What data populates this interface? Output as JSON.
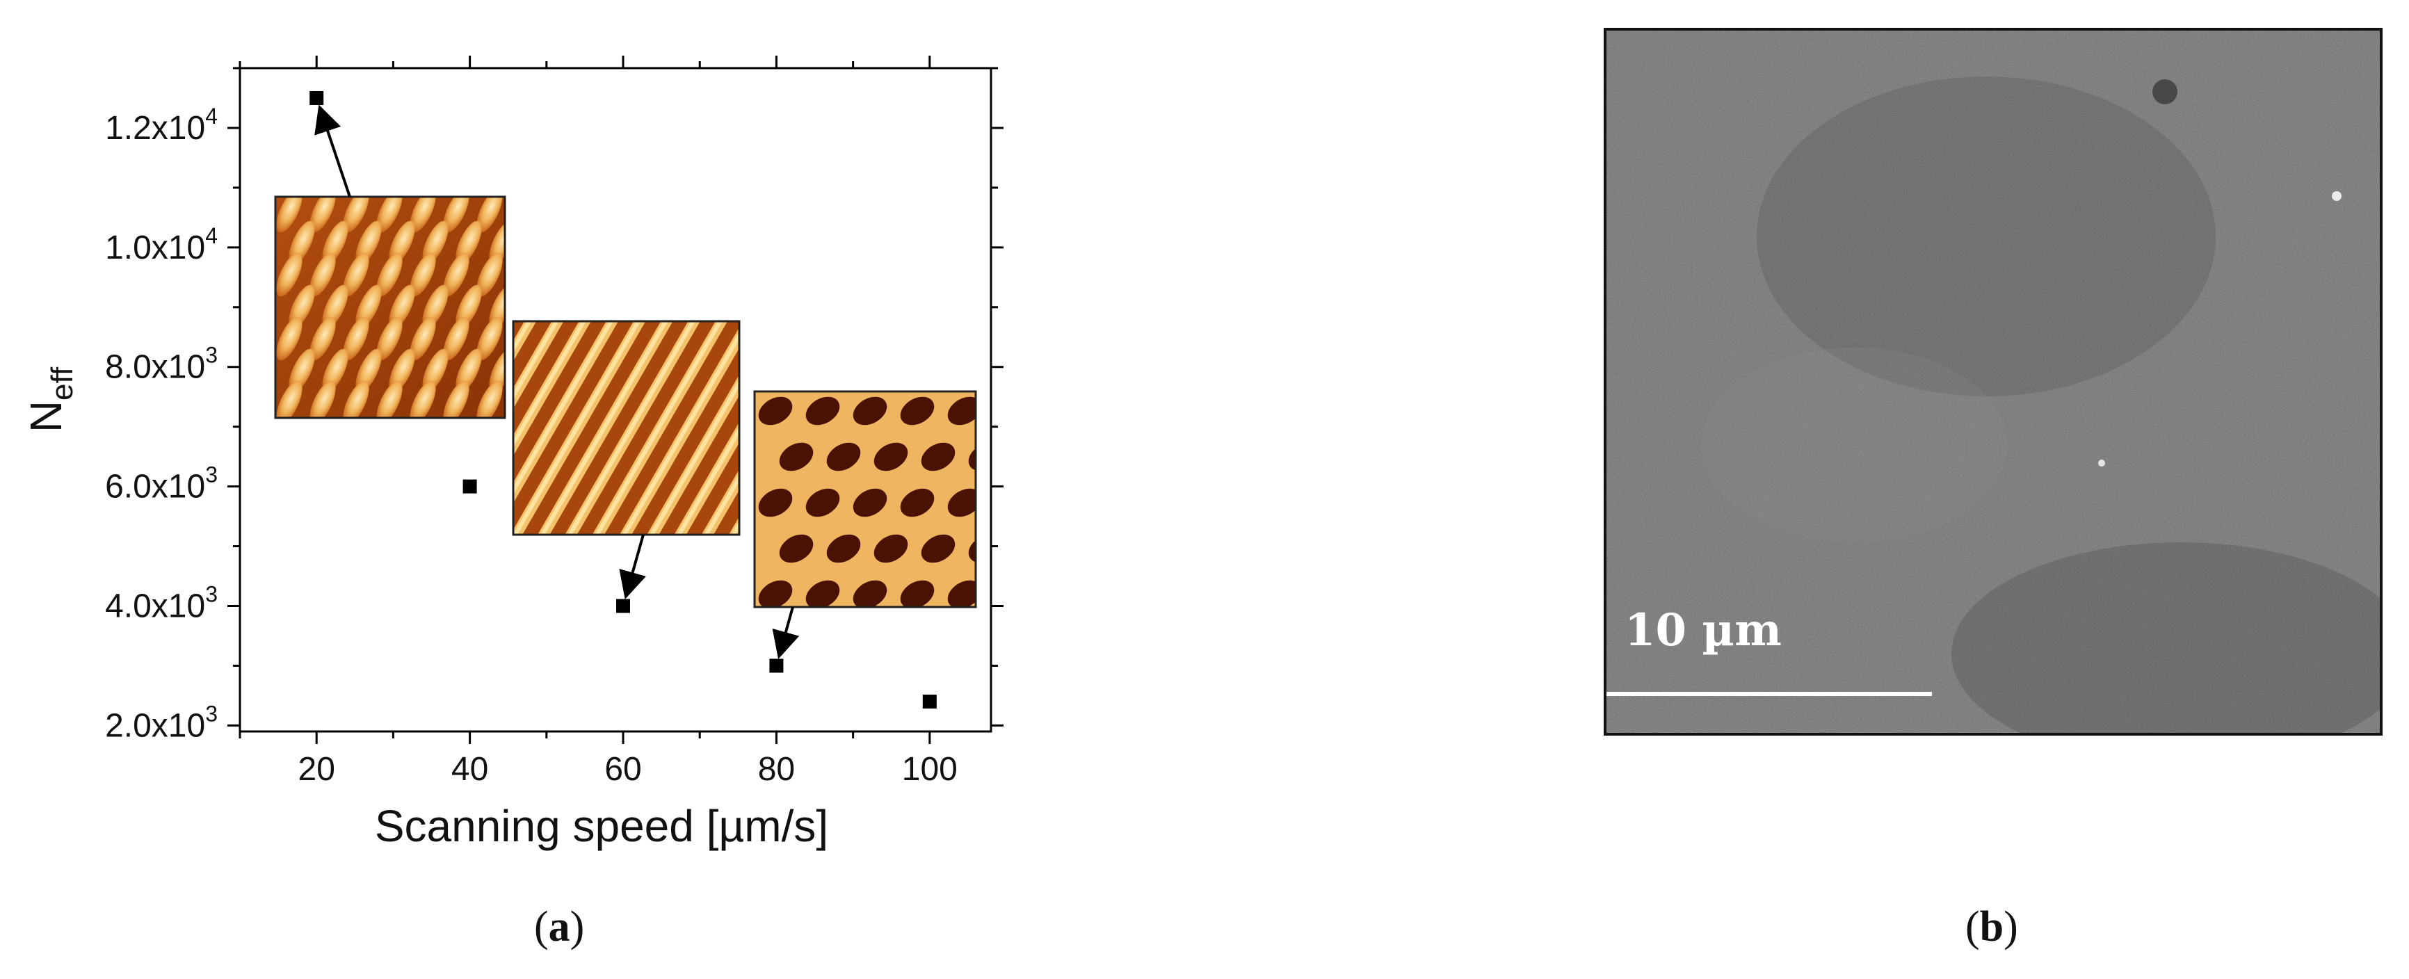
{
  "chart_data": {
    "type": "scatter",
    "xlabel": "Scanning speed [µm/s]",
    "ylabel_main": "N",
    "ylabel_sub": "eff",
    "xlim": [
      10,
      108
    ],
    "ylim": [
      1900,
      13000
    ],
    "x_ticks": [
      20,
      40,
      60,
      80,
      100
    ],
    "x_tick_labels": [
      "20",
      "40",
      "60",
      "80",
      "100"
    ],
    "y_ticks": [
      2000,
      4000,
      6000,
      8000,
      10000,
      12000
    ],
    "y_tick_mantissa": [
      "2.0x10",
      "4.0x10",
      "6.0x10",
      "8.0x10",
      "1.0x10",
      "1.2x10"
    ],
    "y_tick_exponent": [
      "3",
      "3",
      "3",
      "3",
      "4",
      "4"
    ],
    "points": [
      {
        "x": 20,
        "y": 12500
      },
      {
        "x": 40,
        "y": 6000
      },
      {
        "x": 60,
        "y": 4000
      },
      {
        "x": 80,
        "y": 3000
      },
      {
        "x": 100,
        "y": 2400
      }
    ],
    "marker": "square",
    "marker_color": "#000000",
    "insets": [
      {
        "name": "afm-inset-20",
        "pattern": "dots",
        "points_to_x": 20,
        "points_to_y": 12500
      },
      {
        "name": "afm-inset-60",
        "pattern": "stripes",
        "points_to_x": 60,
        "points_to_y": 4000
      },
      {
        "name": "afm-inset-80",
        "pattern": "network",
        "points_to_x": 80,
        "points_to_y": 3000
      }
    ]
  },
  "panels": {
    "a_label": "a",
    "b_label": "b"
  },
  "sem_image": {
    "scale_bar_label": "10 µm",
    "background": "#6e6e6e",
    "frame_color": "#111111"
  },
  "colors": {
    "afm_dark": "#6a1d03",
    "afm_mid": "#c8641a",
    "afm_light": "#f7cf80",
    "afm_highlight": "#fde9b8"
  }
}
